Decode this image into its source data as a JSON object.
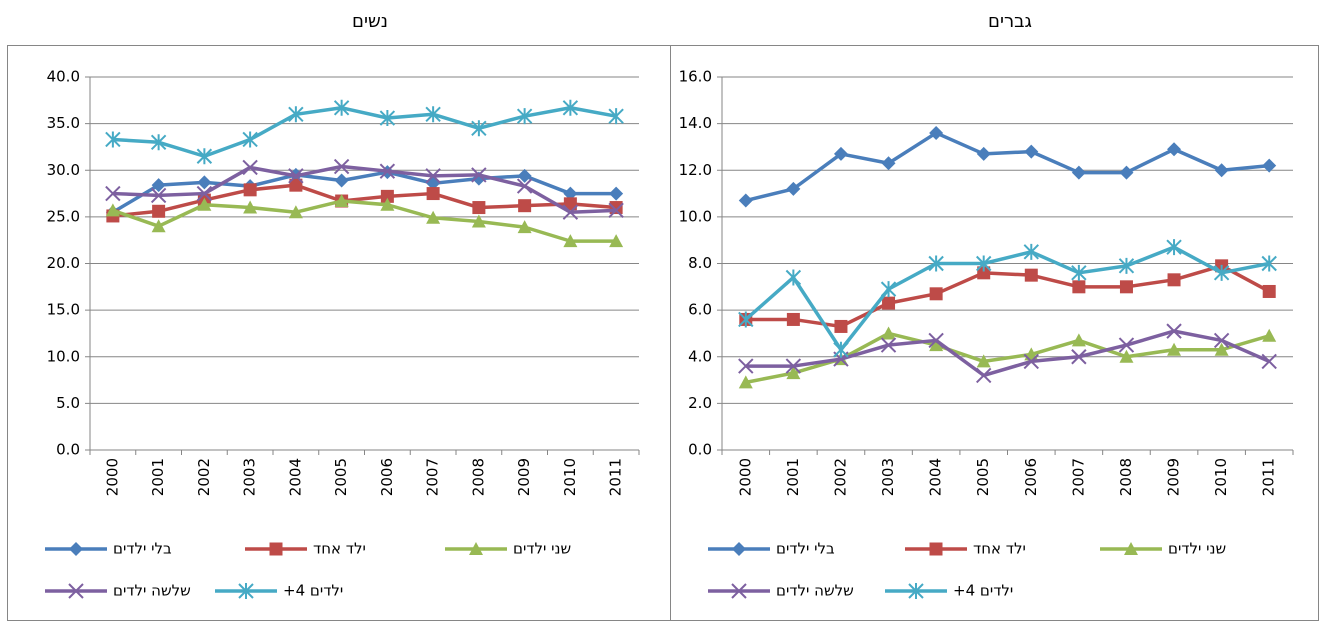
{
  "chart_data": [
    {
      "type": "line",
      "title": "נשים",
      "categories": [
        "2000",
        "2001",
        "2002",
        "2003",
        "2004",
        "2005",
        "2006",
        "2007",
        "2008",
        "2009",
        "2010",
        "2011"
      ],
      "ylim": [
        0,
        40
      ],
      "yticks": [
        {
          "value": 0,
          "label": "0.0"
        },
        {
          "value": 5,
          "label": "5.0"
        },
        {
          "value": 10,
          "label": "10.0"
        },
        {
          "value": 15,
          "label": "15.0"
        },
        {
          "value": 20,
          "label": "20.0"
        },
        {
          "value": 25,
          "label": "25.0"
        },
        {
          "value": 30,
          "label": "30.0"
        },
        {
          "value": 35,
          "label": "35.0"
        },
        {
          "value": 40,
          "label": "40.0"
        }
      ],
      "grid": true,
      "series": [
        {
          "name": "בלי ילדים",
          "color": "#4a7ebb",
          "marker": "diamond",
          "values": [
            25.5,
            28.4,
            28.7,
            28.3,
            29.5,
            28.9,
            29.8,
            28.6,
            29.1,
            29.4,
            27.5,
            27.5
          ]
        },
        {
          "name": "ילד אחד",
          "color": "#be4b48",
          "marker": "square",
          "values": [
            25.1,
            25.6,
            26.8,
            27.9,
            28.4,
            26.7,
            27.2,
            27.5,
            26.0,
            26.2,
            26.4,
            26.0
          ]
        },
        {
          "name": "שני ילדים",
          "color": "#98b954",
          "marker": "triangle",
          "values": [
            25.7,
            24.0,
            26.3,
            26.0,
            25.5,
            26.7,
            26.3,
            24.9,
            24.5,
            23.9,
            22.4,
            22.4
          ]
        },
        {
          "name": "שלשה ילדים",
          "color": "#7d60a0",
          "marker": "x",
          "values": [
            27.5,
            27.3,
            27.5,
            30.3,
            29.4,
            30.4,
            29.9,
            29.4,
            29.5,
            28.3,
            25.5,
            25.7
          ]
        },
        {
          "name": "+4 ילדים",
          "color": "#46aac5",
          "marker": "star",
          "values": [
            33.3,
            33.0,
            31.5,
            33.3,
            36.0,
            36.7,
            35.6,
            36.0,
            34.5,
            35.8,
            36.7,
            35.8
          ]
        }
      ]
    },
    {
      "type": "line",
      "title": "גברים",
      "categories": [
        "2000",
        "2001",
        "2002",
        "2003",
        "2004",
        "2005",
        "2006",
        "2007",
        "2008",
        "2009",
        "2010",
        "2011"
      ],
      "ylim": [
        0,
        16
      ],
      "yticks": [
        {
          "value": 0,
          "label": "0.0"
        },
        {
          "value": 2,
          "label": "2.0"
        },
        {
          "value": 4,
          "label": "4.0"
        },
        {
          "value": 6,
          "label": "6.0"
        },
        {
          "value": 8,
          "label": "8.0"
        },
        {
          "value": 10,
          "label": "10.0"
        },
        {
          "value": 12,
          "label": "12.0"
        },
        {
          "value": 14,
          "label": "14.0"
        },
        {
          "value": 16,
          "label": "16.0"
        }
      ],
      "grid": true,
      "series": [
        {
          "name": "בלי ילדים",
          "color": "#4a7ebb",
          "marker": "diamond",
          "values": [
            10.7,
            11.2,
            12.7,
            12.3,
            13.6,
            12.7,
            12.8,
            11.9,
            11.9,
            12.9,
            12.0,
            12.2
          ]
        },
        {
          "name": "ילד אחד",
          "color": "#be4b48",
          "marker": "square",
          "values": [
            5.6,
            5.6,
            5.3,
            6.3,
            6.7,
            7.6,
            7.5,
            7.0,
            7.0,
            7.3,
            7.9,
            6.8
          ]
        },
        {
          "name": "שני ילדים",
          "color": "#98b954",
          "marker": "triangle",
          "values": [
            2.9,
            3.3,
            3.9,
            5.0,
            4.5,
            3.8,
            4.1,
            4.7,
            4.0,
            4.3,
            4.3,
            4.9
          ]
        },
        {
          "name": "שלשה ילדים",
          "color": "#7d60a0",
          "marker": "x",
          "values": [
            3.6,
            3.6,
            3.9,
            4.5,
            4.7,
            3.2,
            3.8,
            4.0,
            4.5,
            5.1,
            4.7,
            3.8
          ]
        },
        {
          "name": "+4 ילדים",
          "color": "#46aac5",
          "marker": "star",
          "values": [
            5.6,
            7.4,
            4.3,
            6.9,
            8.0,
            8.0,
            8.5,
            7.6,
            7.9,
            8.7,
            7.6,
            8.0
          ]
        }
      ]
    }
  ]
}
